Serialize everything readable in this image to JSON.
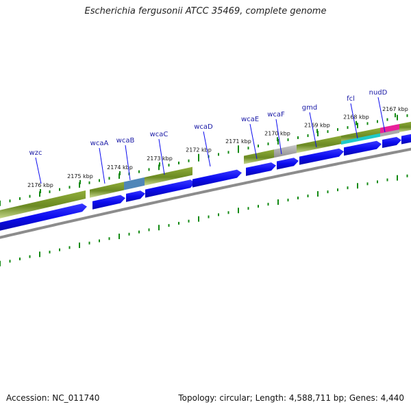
{
  "title": "Escherichia fergusonii ATCC 35469, complete genome",
  "footer": {
    "accession": "Accession: NC_011740",
    "summary": "Topology: circular; Length: 4,588,711 bp; Genes: 4,440"
  },
  "genes": [
    "wzc",
    "wcaA",
    "wcaB",
    "wcaC",
    "wcaD",
    "wcaE",
    "wcaF",
    "gmd",
    "fcl",
    "nudD"
  ],
  "kbp_ticks": [
    "2176 kbp",
    "2175 kbp",
    "2174 kbp",
    "2173 kbp",
    "2172 kbp",
    "2171 kbp",
    "2170 kbp",
    "2169 kbp",
    "2168 kbp",
    "2167 kbp"
  ],
  "colors": {
    "cds_blue": "#0b0bef",
    "feature_olive": "#6b8a23",
    "feature_steelblue": "#4f86b8",
    "feature_gray": "#a9a9a9",
    "feature_cyan": "#1fc9c9",
    "feature_pink": "#e8209a",
    "tick_green": "#138a13",
    "backbone_gray": "#8c8c8c"
  }
}
